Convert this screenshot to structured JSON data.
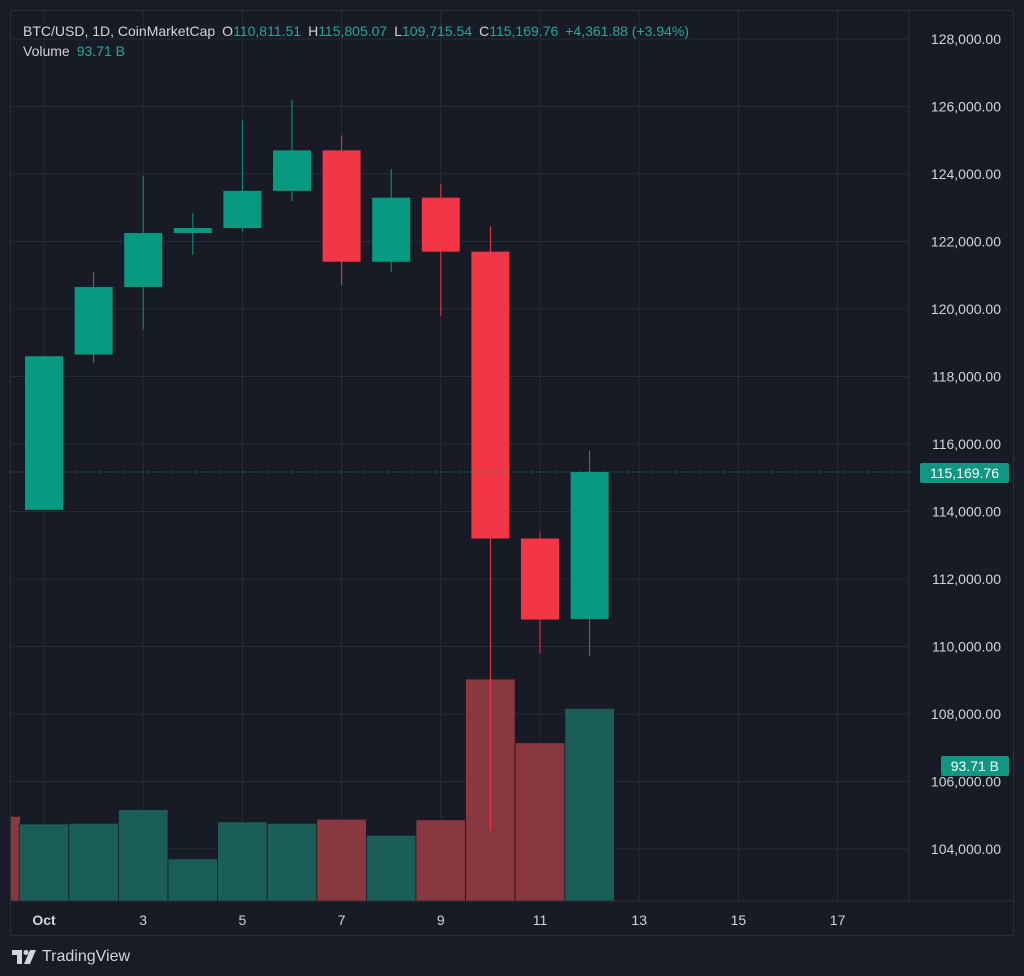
{
  "header": {
    "symbol": "BTC/USD, 1D, CoinMarketCap",
    "open_label": "O",
    "open": "110,811.51",
    "high_label": "H",
    "high": "115,805.07",
    "low_label": "L",
    "low": "109,715.54",
    "close_label": "C",
    "close": "115,169.76",
    "change": "+4,361.88 (+3.94%)",
    "volume_label": "Volume",
    "volume": "93.71 B"
  },
  "price_badge": "115,169.76",
  "volume_badge": "93.71 B",
  "footer": {
    "brand": "TradingView"
  },
  "colors": {
    "up": "#089981",
    "down": "#f23645",
    "volume_up": "#1b5e57",
    "volume_down": "#8a3840",
    "grid": "#262a35",
    "text": "#d1d4dc"
  },
  "icons": {
    "logo": "tradingview-logo-icon"
  },
  "chart_data": {
    "type": "candlestick",
    "title": "BTC/USD, 1D, CoinMarketCap",
    "x_tick_labels": [
      "Oct",
      "3",
      "5",
      "7",
      "9",
      "11",
      "13",
      "15",
      "17"
    ],
    "y_tick_labels": [
      "104,000.00",
      "106,000.00",
      "108,000.00",
      "110,000.00",
      "112,000.00",
      "114,000.00",
      "116,000.00",
      "118,000.00",
      "120,000.00",
      "122,000.00",
      "124,000.00",
      "126,000.00",
      "128,000.00"
    ],
    "ylim": [
      103000,
      128700
    ],
    "grid": true,
    "series": [
      {
        "date": "Oct 1",
        "open": 114050,
        "high": 118600,
        "low": 114050,
        "close": 118600,
        "volume": 37.5
      },
      {
        "date": "Oct 2",
        "open": 118650,
        "high": 121100,
        "low": 118400,
        "close": 120650,
        "volume": 37.8
      },
      {
        "date": "Oct 3",
        "open": 120650,
        "high": 123950,
        "low": 119400,
        "close": 122250,
        "volume": 44.5
      },
      {
        "date": "Oct 4",
        "open": 122250,
        "high": 122850,
        "low": 121600,
        "close": 122400,
        "volume": 20.5
      },
      {
        "date": "Oct 5",
        "open": 122400,
        "high": 125600,
        "low": 122300,
        "close": 123500,
        "volume": 38.5
      },
      {
        "date": "Oct 6",
        "open": 123500,
        "high": 126200,
        "low": 123200,
        "close": 124700,
        "volume": 37.8
      },
      {
        "date": "Oct 7",
        "open": 124700,
        "high": 125150,
        "low": 120700,
        "close": 121400,
        "volume": 39.8
      },
      {
        "date": "Oct 8",
        "open": 121400,
        "high": 124150,
        "low": 121100,
        "close": 123300,
        "volume": 32.0
      },
      {
        "date": "Oct 9",
        "open": 123300,
        "high": 123700,
        "low": 119800,
        "close": 121700,
        "volume": 39.5
      },
      {
        "date": "Oct 10",
        "open": 121700,
        "high": 122450,
        "low": 104550,
        "close": 113200,
        "volume": 108.0
      },
      {
        "date": "Oct 11",
        "open": 113200,
        "high": 113400,
        "low": 109800,
        "close": 110800,
        "volume": 77.0
      },
      {
        "date": "Oct 12",
        "open": 110811.51,
        "high": 115805.07,
        "low": 109715.54,
        "close": 115169.76,
        "volume": 93.71
      }
    ]
  }
}
